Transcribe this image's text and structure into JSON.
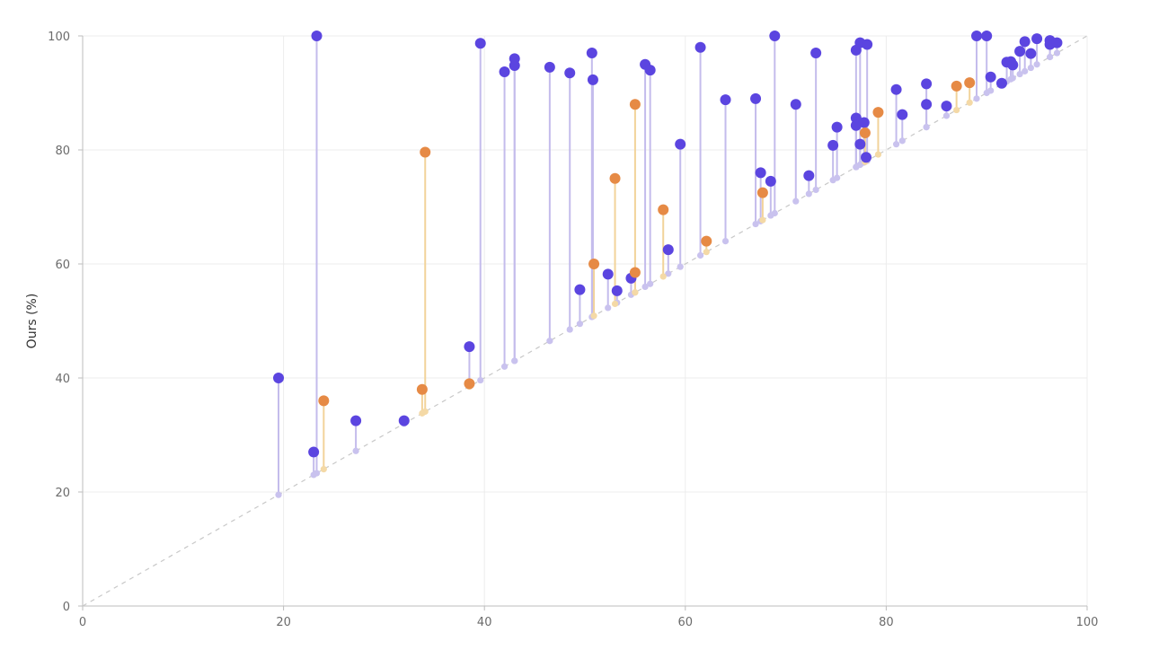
{
  "chart_data": {
    "type": "scatter",
    "title": "",
    "ylabel": "Ours (%)",
    "xlabel": "",
    "xlim": [
      0,
      100
    ],
    "ylim": [
      0,
      100
    ],
    "xticks": [
      "0",
      "20",
      "40",
      "60",
      "80",
      "100"
    ],
    "yticks": [
      "0",
      "20",
      "40",
      "60",
      "80",
      "100"
    ],
    "grid": true,
    "diagonal_reference": true,
    "colors": {
      "blue_marker": "#5b45e0",
      "blue_stem": "#c4bcec",
      "blue_base": "#c9c2ee",
      "orange_marker": "#e68a45",
      "orange_stem": "#f2d39a",
      "orange_base": "#f4d9a6",
      "grid": "#ececec",
      "axis": "#bdbdbd",
      "diagonal": "#c8c8c8"
    },
    "series": [
      {
        "color_key": "blue",
        "points": [
          [
            19.5,
            40.0
          ],
          [
            23.0,
            27.0
          ],
          [
            23.3,
            100.0
          ],
          [
            27.2,
            32.5
          ],
          [
            32.0,
            32.5
          ],
          [
            38.5,
            45.5
          ],
          [
            39.6,
            98.7
          ],
          [
            42.0,
            93.7
          ],
          [
            43.0,
            94.8
          ],
          [
            43.0,
            96.0
          ],
          [
            46.5,
            94.5
          ],
          [
            48.5,
            93.5
          ],
          [
            49.5,
            55.5
          ],
          [
            50.7,
            97.0
          ],
          [
            50.8,
            92.3
          ],
          [
            52.3,
            58.2
          ],
          [
            53.2,
            55.3
          ],
          [
            54.6,
            57.5
          ],
          [
            56.0,
            95.0
          ],
          [
            56.5,
            94.0
          ],
          [
            58.3,
            62.5
          ],
          [
            59.5,
            81.0
          ],
          [
            61.5,
            98.0
          ],
          [
            64.0,
            88.8
          ],
          [
            67.0,
            89.0
          ],
          [
            67.5,
            76.0
          ],
          [
            68.5,
            74.5
          ],
          [
            68.9,
            100.0
          ],
          [
            71.0,
            88.0
          ],
          [
            72.3,
            75.5
          ],
          [
            73.0,
            97.0
          ],
          [
            74.7,
            80.8
          ],
          [
            75.1,
            84.0
          ],
          [
            77.0,
            85.6
          ],
          [
            77.0,
            84.3
          ],
          [
            77.0,
            97.5
          ],
          [
            77.4,
            98.8
          ],
          [
            77.4,
            81.0
          ],
          [
            77.8,
            84.8
          ],
          [
            78.0,
            78.7
          ],
          [
            78.1,
            98.5
          ],
          [
            81.0,
            90.6
          ],
          [
            81.6,
            86.2
          ],
          [
            84.0,
            88.0
          ],
          [
            84.0,
            91.6
          ],
          [
            86.0,
            87.7
          ],
          [
            89.0,
            100.0
          ],
          [
            90.0,
            100.0
          ],
          [
            90.4,
            92.8
          ],
          [
            91.5,
            91.7
          ],
          [
            92.0,
            95.4
          ],
          [
            92.4,
            95.5
          ],
          [
            92.6,
            94.9
          ],
          [
            93.3,
            97.3
          ],
          [
            93.8,
            99.0
          ],
          [
            94.4,
            96.9
          ],
          [
            95.0,
            99.5
          ],
          [
            96.3,
            99.2
          ],
          [
            96.3,
            98.5
          ],
          [
            97.0,
            98.8
          ]
        ]
      },
      {
        "color_key": "orange",
        "points": [
          [
            24.0,
            36.0
          ],
          [
            33.8,
            38.0
          ],
          [
            34.1,
            79.6
          ],
          [
            38.5,
            39.0
          ],
          [
            50.9,
            60.0
          ],
          [
            53.0,
            75.0
          ],
          [
            55.0,
            88.0
          ],
          [
            55.0,
            58.5
          ],
          [
            57.8,
            69.5
          ],
          [
            62.1,
            64.0
          ],
          [
            67.7,
            72.5
          ],
          [
            77.9,
            83.0
          ],
          [
            79.2,
            86.6
          ],
          [
            87.0,
            91.2
          ],
          [
            88.3,
            91.8
          ]
        ]
      }
    ]
  }
}
